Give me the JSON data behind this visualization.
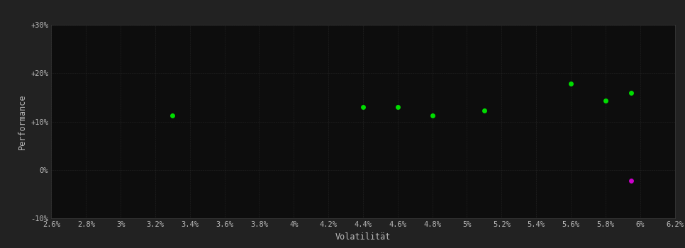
{
  "background_color": "#222222",
  "plot_bg_color": "#0d0d0d",
  "grid_color": "#3a3a3a",
  "text_color": "#bbbbbb",
  "xlabel": "Volatilität",
  "ylabel": "Performance",
  "xlim": [
    0.026,
    0.062
  ],
  "ylim": [
    -0.1,
    0.3
  ],
  "xticks": [
    0.026,
    0.028,
    0.03,
    0.032,
    0.034,
    0.036,
    0.038,
    0.04,
    0.042,
    0.044,
    0.046,
    0.048,
    0.05,
    0.052,
    0.054,
    0.056,
    0.058,
    0.06,
    0.062
  ],
  "yticks": [
    -0.1,
    0.0,
    0.1,
    0.2,
    0.3
  ],
  "ytick_labels": [
    "-10%",
    "0%",
    "+10%",
    "+20%",
    "+30%"
  ],
  "xtick_labels": [
    "2.6%",
    "2.8%",
    "3%",
    "3.2%",
    "3.4%",
    "3.6%",
    "3.8%",
    "4%",
    "4.2%",
    "4.4%",
    "4.6%",
    "4.8%",
    "5%",
    "5.2%",
    "5.4%",
    "5.6%",
    "5.8%",
    "6%",
    "6.2%"
  ],
  "green_dots": [
    [
      0.033,
      0.112
    ],
    [
      0.044,
      0.13
    ],
    [
      0.046,
      0.13
    ],
    [
      0.048,
      0.112
    ],
    [
      0.051,
      0.122
    ],
    [
      0.056,
      0.178
    ],
    [
      0.058,
      0.143
    ],
    [
      0.0595,
      0.16
    ]
  ],
  "magenta_dot": [
    0.0595,
    -0.022
  ],
  "dot_color_green": "#00dd00",
  "dot_color_magenta": "#cc00cc",
  "dot_size": 25,
  "font_size_ticks": 7.5,
  "font_size_labels": 8.5
}
